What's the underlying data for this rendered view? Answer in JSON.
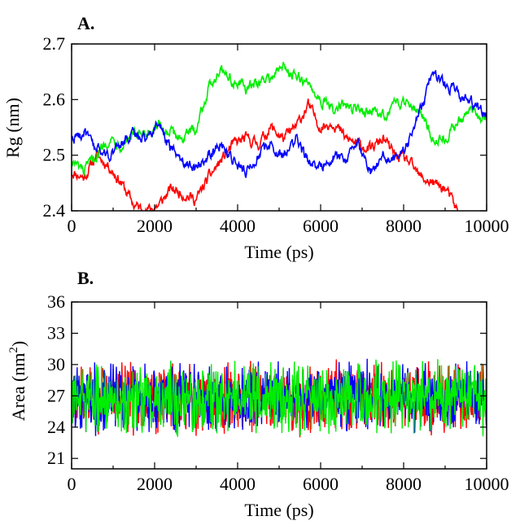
{
  "chart_data": [
    {
      "type": "line",
      "panel_label": "A.",
      "xlabel": "Time (ps)",
      "ylabel": "Rg (nm)",
      "xlim": [
        0,
        10000
      ],
      "ylim": [
        2.4,
        2.7
      ],
      "xticks": [
        0,
        2000,
        4000,
        6000,
        8000,
        10000
      ],
      "yticks": [
        2.4,
        2.5,
        2.6,
        2.7
      ],
      "xtick_labels": [
        "0",
        "2000",
        "4000",
        "6000",
        "8000",
        "10000"
      ],
      "ytick_labels": [
        "2.4",
        "2.5",
        "2.6",
        "2.7"
      ],
      "grid": false,
      "noise": 0.008,
      "series": [
        {
          "color": "#ff0000",
          "x": [
            0,
            300,
            600,
            900,
            1200,
            1500,
            1800,
            2100,
            2400,
            2700,
            3000,
            3300,
            3600,
            3900,
            4200,
            4500,
            4800,
            5100,
            5400,
            5700,
            6000,
            6300,
            6600,
            6900,
            7200,
            7500,
            7800,
            8100,
            8400,
            8700,
            9000,
            9300
          ],
          "y": [
            2.47,
            2.46,
            2.5,
            2.48,
            2.45,
            2.41,
            2.4,
            2.41,
            2.44,
            2.43,
            2.42,
            2.46,
            2.49,
            2.52,
            2.53,
            2.52,
            2.55,
            2.53,
            2.55,
            2.59,
            2.55,
            2.56,
            2.53,
            2.52,
            2.51,
            2.53,
            2.5,
            2.49,
            2.46,
            2.45,
            2.44,
            2.4
          ]
        },
        {
          "color": "#00ee00",
          "x": [
            0,
            300,
            600,
            900,
            1200,
            1500,
            1800,
            2100,
            2400,
            2700,
            3000,
            3300,
            3600,
            3900,
            4200,
            4500,
            4800,
            5100,
            5400,
            5700,
            6000,
            6300,
            6600,
            6900,
            7200,
            7500,
            7800,
            8100,
            8400,
            8700,
            9000,
            9300,
            9600,
            10000
          ],
          "y": [
            2.49,
            2.47,
            2.5,
            2.53,
            2.52,
            2.54,
            2.53,
            2.55,
            2.54,
            2.53,
            2.55,
            2.62,
            2.66,
            2.63,
            2.62,
            2.63,
            2.64,
            2.66,
            2.64,
            2.63,
            2.6,
            2.58,
            2.59,
            2.58,
            2.58,
            2.57,
            2.59,
            2.6,
            2.58,
            2.53,
            2.53,
            2.56,
            2.58,
            2.56
          ]
        },
        {
          "color": "#0000ff",
          "x": [
            0,
            300,
            600,
            900,
            1200,
            1500,
            1800,
            2100,
            2400,
            2700,
            3000,
            3300,
            3600,
            3900,
            4200,
            4500,
            4800,
            5100,
            5400,
            5700,
            6000,
            6300,
            6600,
            6900,
            7200,
            7500,
            7800,
            8100,
            8400,
            8700,
            9000,
            9300,
            9600,
            10000
          ],
          "y": [
            2.53,
            2.54,
            2.51,
            2.5,
            2.52,
            2.54,
            2.53,
            2.56,
            2.51,
            2.49,
            2.48,
            2.5,
            2.52,
            2.49,
            2.47,
            2.5,
            2.52,
            2.5,
            2.53,
            2.49,
            2.48,
            2.5,
            2.49,
            2.52,
            2.47,
            2.5,
            2.49,
            2.52,
            2.58,
            2.65,
            2.63,
            2.61,
            2.6,
            2.57
          ]
        }
      ]
    },
    {
      "type": "line",
      "panel_label": "B.",
      "xlabel": "Time (ps)",
      "ylabel": "Area (nm",
      "ylabel_sup": "2",
      "ylabel_close": ")",
      "xlim": [
        0,
        10000
      ],
      "ylim": [
        20,
        36
      ],
      "xticks": [
        0,
        2000,
        4000,
        6000,
        8000,
        10000
      ],
      "yticks": [
        21,
        24,
        27,
        30,
        33,
        36
      ],
      "xtick_labels": [
        "0",
        "2000",
        "4000",
        "6000",
        "8000",
        "10000"
      ],
      "ytick_labels": [
        "21",
        "24",
        "27",
        "30",
        "33",
        "36"
      ],
      "grid": false,
      "noise": 2.4,
      "series": [
        {
          "color": "#ff0000",
          "x": [
            0,
            10000
          ],
          "y": [
            26.8,
            26.8
          ]
        },
        {
          "color": "#0000ff",
          "x": [
            0,
            10000
          ],
          "y": [
            26.9,
            26.9
          ]
        },
        {
          "color": "#00ee00",
          "x": [
            0,
            10000
          ],
          "y": [
            26.8,
            26.8
          ]
        }
      ]
    }
  ]
}
